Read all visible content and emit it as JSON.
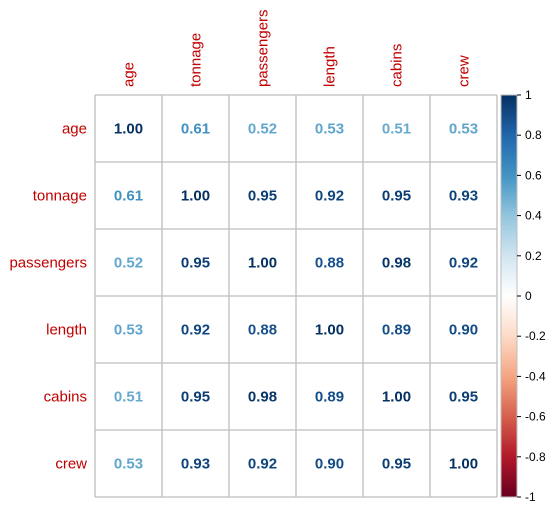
{
  "chart_data": {
    "type": "heatmap",
    "title": "",
    "rows": [
      "age",
      "tonnage",
      "passengers",
      "length",
      "cabins",
      "crew"
    ],
    "columns": [
      "age",
      "tonnage",
      "passengers",
      "length",
      "cabins",
      "crew"
    ],
    "values": [
      [
        1.0,
        0.61,
        0.52,
        0.53,
        0.51,
        0.53
      ],
      [
        0.61,
        1.0,
        0.95,
        0.92,
        0.95,
        0.93
      ],
      [
        0.52,
        0.95,
        1.0,
        0.88,
        0.98,
        0.92
      ],
      [
        0.53,
        0.92,
        0.88,
        1.0,
        0.89,
        0.9
      ],
      [
        0.51,
        0.95,
        0.98,
        0.89,
        1.0,
        0.95
      ],
      [
        0.53,
        0.93,
        0.92,
        0.9,
        0.95,
        1.0
      ]
    ],
    "cell_labels": [
      [
        "1.00",
        "0.61",
        "0.52",
        "0.53",
        "0.51",
        "0.53"
      ],
      [
        "0.61",
        "1.00",
        "0.95",
        "0.92",
        "0.95",
        "0.93"
      ],
      [
        "0.52",
        "0.95",
        "1.00",
        "0.88",
        "0.98",
        "0.92"
      ],
      [
        "0.53",
        "0.92",
        "0.88",
        "1.00",
        "0.89",
        "0.90"
      ],
      [
        "0.51",
        "0.95",
        "0.98",
        "0.89",
        "1.00",
        "0.95"
      ],
      [
        "0.53",
        "0.93",
        "0.92",
        "0.90",
        "0.95",
        "1.00"
      ]
    ],
    "colorbar": {
      "range": [
        -1,
        1
      ],
      "ticks": [
        "1",
        "0.8",
        "0.6",
        "0.4",
        "0.2",
        "0",
        "-0.2",
        "-0.4",
        "-0.6",
        "-0.8",
        "-1"
      ],
      "tick_values": [
        1,
        0.8,
        0.6,
        0.4,
        0.2,
        0,
        -0.2,
        -0.4,
        -0.6,
        -0.8,
        -1
      ],
      "placement": "right"
    },
    "grid": true,
    "colors": {
      "label": "#C00000",
      "grid": "#BEBEBE",
      "scale": [
        "#67001F",
        "#B2182B",
        "#D6604D",
        "#F4A582",
        "#FDDBC7",
        "#FFFFFF",
        "#D1E5F0",
        "#92C5DE",
        "#4393C3",
        "#2166AC",
        "#053061"
      ]
    }
  }
}
